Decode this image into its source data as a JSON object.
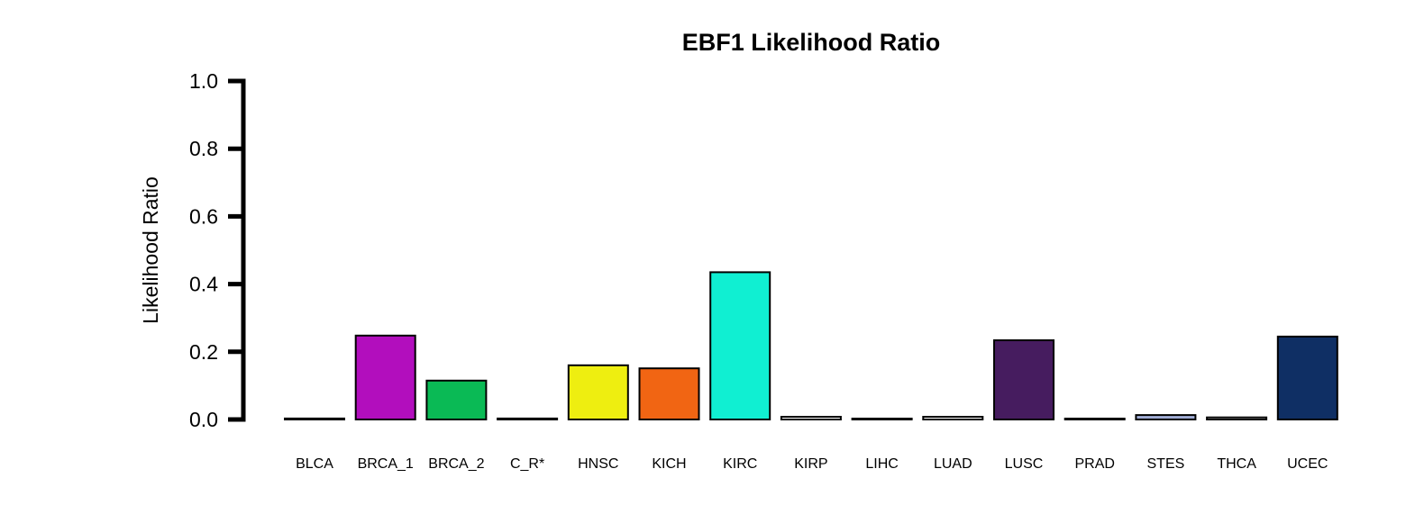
{
  "chart_data": {
    "type": "bar",
    "title": "EBF1 Likelihood Ratio",
    "xlabel": "",
    "ylabel": "Likelihood Ratio",
    "ylim": [
      0,
      1.0
    ],
    "yticks": [
      "0.0",
      "0.2",
      "0.4",
      "0.6",
      "0.8",
      "1.0"
    ],
    "grid": false,
    "legend": "none",
    "categories": [
      "BLCA",
      "BRCA_1",
      "BRCA_2",
      "C_R*",
      "HNSC",
      "KICH",
      "KIRC",
      "KIRP",
      "LIHC",
      "LUAD",
      "LUSC",
      "PRAD",
      "STES",
      "THCA",
      "UCEC"
    ],
    "values": [
      0.003,
      0.248,
      0.115,
      0.003,
      0.16,
      0.151,
      0.435,
      0.008,
      0.002,
      0.008,
      0.234,
      0.002,
      0.013,
      0.006,
      0.245
    ],
    "colors": [
      "#ffffff",
      "#b20ebd",
      "#0aba55",
      "#ffffff",
      "#eeee10",
      "#f16513",
      "#10efd2",
      "#ffffff",
      "#ffffff",
      "#ffffff",
      "#461c5f",
      "#ffffff",
      "#a2aed6",
      "#ffffff",
      "#0f2f64"
    ]
  }
}
